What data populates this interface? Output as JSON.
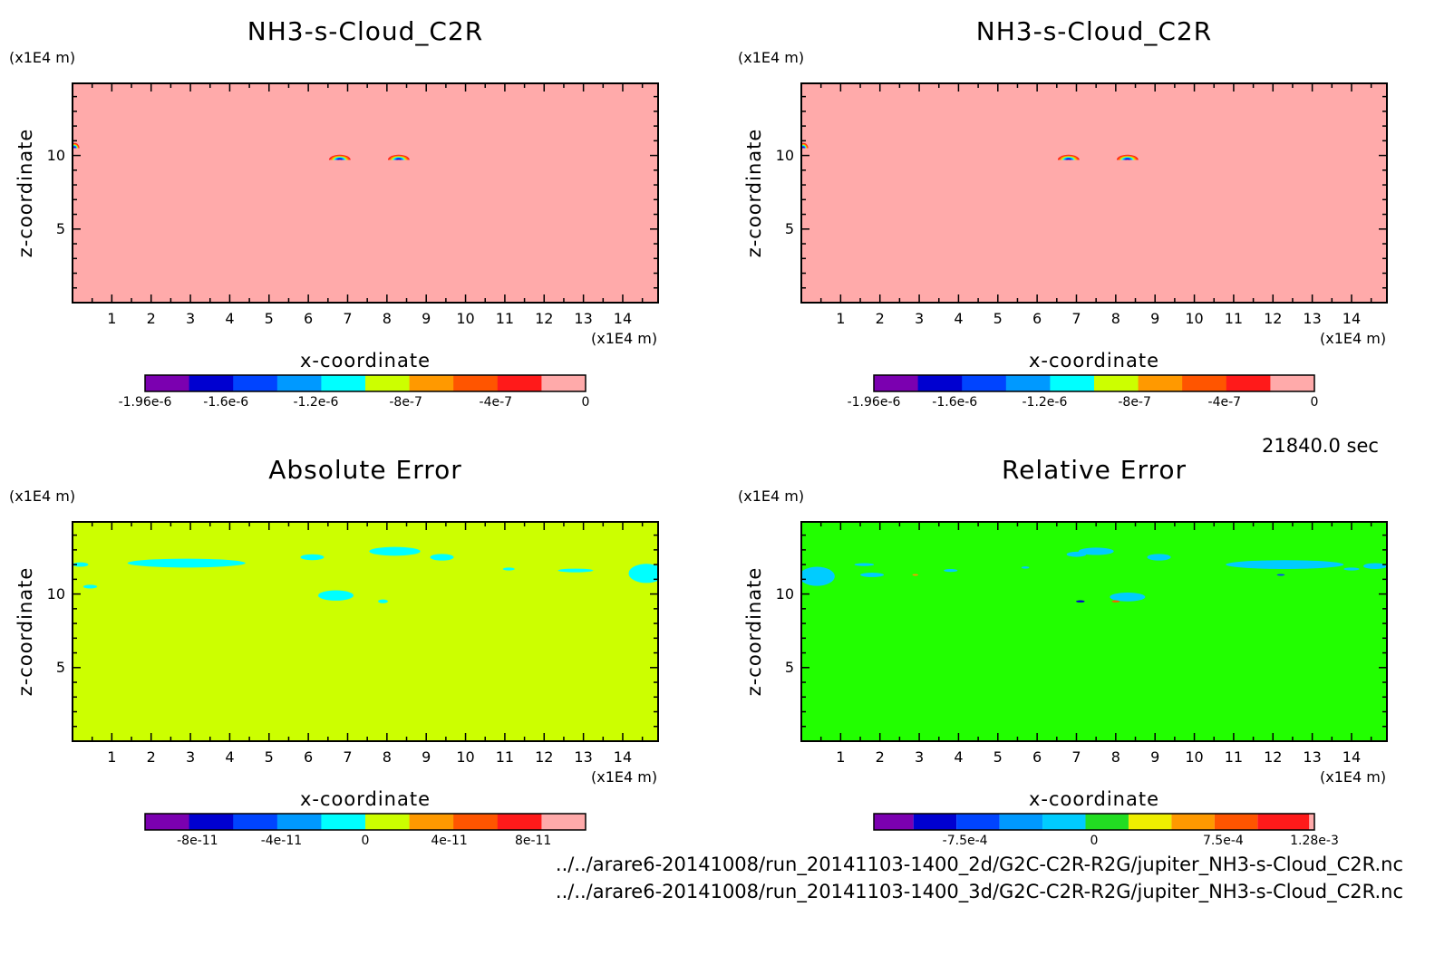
{
  "footer": {
    "time": "21840.0 sec",
    "paths": [
      "../../arare6-20141008/run_20141103-1400_2d/G2C-C2R-R2G/jupiter_NH3-s-Cloud_C2R.nc",
      "../../arare6-20141008/run_20141103-1400_3d/G2C-C2R-R2G/jupiter_NH3-s-Cloud_C2R.nc"
    ]
  },
  "chart_data": [
    {
      "type": "heatmap",
      "title": "NH3-s-Cloud_C2R",
      "xlabel": "x-coordinate",
      "ylabel": "z-coordinate",
      "x_unit": "(x1E4 m)",
      "y_unit": "(x1E4 m)",
      "xlim": [
        0,
        14.9
      ],
      "ylim": [
        0,
        14.9
      ],
      "x_ticks": [
        1,
        2,
        3,
        4,
        5,
        6,
        7,
        8,
        9,
        10,
        11,
        12,
        13,
        14
      ],
      "y_ticks": [
        5,
        10
      ],
      "background": "#ffaaaa",
      "features": [
        {
          "kind": "dome",
          "x": 6.8,
          "z": 9.7,
          "w": 0.55,
          "h": 0.35
        },
        {
          "kind": "dome",
          "x": 8.3,
          "z": 9.7,
          "w": 0.55,
          "h": 0.35
        },
        {
          "kind": "dome",
          "x": 0.05,
          "z": 10.5,
          "w": 0.25,
          "h": 0.35
        }
      ],
      "colorbar": {
        "colors": [
          "#7b00b0",
          "#0000d0",
          "#0044ff",
          "#0099ff",
          "#00ffff",
          "#ccff00",
          "#ff9900",
          "#ff5500",
          "#ff1a1a",
          "#ffaaaa"
        ],
        "tick_labels": [
          "-1.96e-6",
          "-1.6e-6",
          "-1.2e-6",
          "-8e-7",
          "-4e-7",
          "0"
        ],
        "tick_values": [
          -1.96e-06,
          -1.6e-06,
          -1.2e-06,
          -8e-07,
          -4e-07,
          0
        ],
        "range": [
          -1.96e-06,
          0
        ]
      }
    },
    {
      "type": "heatmap",
      "title": "NH3-s-Cloud_C2R",
      "xlabel": "x-coordinate",
      "ylabel": "z-coordinate",
      "x_unit": "(x1E4 m)",
      "y_unit": "(x1E4 m)",
      "xlim": [
        0,
        14.9
      ],
      "ylim": [
        0,
        14.9
      ],
      "x_ticks": [
        1,
        2,
        3,
        4,
        5,
        6,
        7,
        8,
        9,
        10,
        11,
        12,
        13,
        14
      ],
      "y_ticks": [
        5,
        10
      ],
      "background": "#ffaaaa",
      "features": [
        {
          "kind": "dome",
          "x": 6.8,
          "z": 9.7,
          "w": 0.55,
          "h": 0.35
        },
        {
          "kind": "dome",
          "x": 8.3,
          "z": 9.7,
          "w": 0.55,
          "h": 0.35
        },
        {
          "kind": "dome",
          "x": 0.05,
          "z": 10.5,
          "w": 0.25,
          "h": 0.35
        }
      ],
      "colorbar": {
        "colors": [
          "#7b00b0",
          "#0000d0",
          "#0044ff",
          "#0099ff",
          "#00ffff",
          "#ccff00",
          "#ff9900",
          "#ff5500",
          "#ff1a1a",
          "#ffaaaa"
        ],
        "tick_labels": [
          "-1.96e-6",
          "-1.6e-6",
          "-1.2e-6",
          "-8e-7",
          "-4e-7",
          "0"
        ],
        "tick_values": [
          -1.96e-06,
          -1.6e-06,
          -1.2e-06,
          -8e-07,
          -4e-07,
          0
        ],
        "range": [
          -1.96e-06,
          0
        ]
      }
    },
    {
      "type": "heatmap",
      "title": "Absolute Error",
      "xlabel": "x-coordinate",
      "ylabel": "z-coordinate",
      "x_unit": "(x1E4 m)",
      "y_unit": "(x1E4 m)",
      "xlim": [
        0,
        14.9
      ],
      "ylim": [
        0,
        14.9
      ],
      "x_ticks": [
        1,
        2,
        3,
        4,
        5,
        6,
        7,
        8,
        9,
        10,
        11,
        12,
        13,
        14
      ],
      "y_ticks": [
        5,
        10
      ],
      "background": "#ccff00",
      "features": [
        {
          "kind": "blob",
          "x": 0.2,
          "z": 12.0,
          "w": 0.4,
          "h": 0.3,
          "color": "#00ffff"
        },
        {
          "kind": "blob",
          "x": 2.9,
          "z": 12.1,
          "w": 3.0,
          "h": 0.6,
          "color": "#00ffff"
        },
        {
          "kind": "blob",
          "x": 0.45,
          "z": 10.5,
          "w": 0.35,
          "h": 0.25,
          "color": "#00ffff"
        },
        {
          "kind": "blob",
          "x": 6.1,
          "z": 12.5,
          "w": 0.6,
          "h": 0.4,
          "color": "#00ffff"
        },
        {
          "kind": "blob",
          "x": 8.2,
          "z": 12.9,
          "w": 1.3,
          "h": 0.6,
          "color": "#00ffff"
        },
        {
          "kind": "blob",
          "x": 9.4,
          "z": 12.5,
          "w": 0.6,
          "h": 0.45,
          "color": "#00ffff"
        },
        {
          "kind": "blob",
          "x": 6.7,
          "z": 9.9,
          "w": 0.9,
          "h": 0.7,
          "color": "#00ffff"
        },
        {
          "kind": "blob",
          "x": 7.9,
          "z": 9.5,
          "w": 0.25,
          "h": 0.25,
          "color": "#00ffff"
        },
        {
          "kind": "blob",
          "x": 11.1,
          "z": 11.7,
          "w": 0.3,
          "h": 0.2,
          "color": "#00ffff"
        },
        {
          "kind": "blob",
          "x": 12.8,
          "z": 11.6,
          "w": 0.9,
          "h": 0.25,
          "color": "#00ffff"
        },
        {
          "kind": "blob",
          "x": 14.6,
          "z": 11.4,
          "w": 0.9,
          "h": 1.3,
          "color": "#00ffff"
        }
      ],
      "colorbar": {
        "colors": [
          "#7b00b0",
          "#0000d0",
          "#0044ff",
          "#0099ff",
          "#00ffff",
          "#ccff00",
          "#ff9900",
          "#ff5500",
          "#ff1a1a",
          "#ffaaaa"
        ],
        "tick_labels": [
          "-8e-11",
          "-4e-11",
          "0",
          "4e-11",
          "8e-11"
        ],
        "tick_values": [
          -8e-11,
          -4e-11,
          0,
          4e-11,
          8e-11
        ],
        "range": [
          -1.05e-10,
          1.05e-10
        ]
      }
    },
    {
      "type": "heatmap",
      "title": "Relative Error",
      "xlabel": "x-coordinate",
      "ylabel": "z-coordinate",
      "x_unit": "(x1E4 m)",
      "y_unit": "(x1E4 m)",
      "xlim": [
        0,
        14.9
      ],
      "ylim": [
        0,
        14.9
      ],
      "x_ticks": [
        1,
        2,
        3,
        4,
        5,
        6,
        7,
        8,
        9,
        10,
        11,
        12,
        13,
        14
      ],
      "y_ticks": [
        5,
        10
      ],
      "background": "#22ff00",
      "features": [
        {
          "kind": "blob",
          "x": 0.4,
          "z": 11.2,
          "w": 0.9,
          "h": 1.3,
          "color": "#00ccff"
        },
        {
          "kind": "blob",
          "x": 1.8,
          "z": 11.3,
          "w": 0.6,
          "h": 0.3,
          "color": "#00ccff"
        },
        {
          "kind": "blob",
          "x": 1.6,
          "z": 12.0,
          "w": 0.5,
          "h": 0.2,
          "color": "#00ccff"
        },
        {
          "kind": "blob",
          "x": 3.8,
          "z": 11.6,
          "w": 0.35,
          "h": 0.2,
          "color": "#00ccff"
        },
        {
          "kind": "blob",
          "x": 5.7,
          "z": 11.8,
          "w": 0.2,
          "h": 0.15,
          "color": "#00ccff"
        },
        {
          "kind": "blob",
          "x": 7.0,
          "z": 12.7,
          "w": 0.5,
          "h": 0.35,
          "color": "#00ccff"
        },
        {
          "kind": "blob",
          "x": 7.5,
          "z": 12.9,
          "w": 0.9,
          "h": 0.5,
          "color": "#00ccff"
        },
        {
          "kind": "blob",
          "x": 9.1,
          "z": 12.5,
          "w": 0.6,
          "h": 0.45,
          "color": "#00ccff"
        },
        {
          "kind": "blob",
          "x": 8.3,
          "z": 9.8,
          "w": 0.9,
          "h": 0.6,
          "color": "#00ccff"
        },
        {
          "kind": "blob",
          "x": 12.3,
          "z": 12.0,
          "w": 3.0,
          "h": 0.6,
          "color": "#00ccff"
        },
        {
          "kind": "blob",
          "x": 14.6,
          "z": 11.9,
          "w": 0.6,
          "h": 0.4,
          "color": "#00ccff"
        },
        {
          "kind": "blob",
          "x": 14.0,
          "z": 11.7,
          "w": 0.4,
          "h": 0.2,
          "color": "#00ccff"
        },
        {
          "kind": "blob",
          "x": 2.9,
          "z": 11.3,
          "w": 0.15,
          "h": 0.12,
          "color": "#ff9900"
        },
        {
          "kind": "blob",
          "x": 7.1,
          "z": 9.5,
          "w": 0.22,
          "h": 0.15,
          "color": "#0000d0"
        },
        {
          "kind": "blob",
          "x": 8.0,
          "z": 9.5,
          "w": 0.2,
          "h": 0.13,
          "color": "#ff5500"
        },
        {
          "kind": "blob",
          "x": 12.2,
          "z": 11.3,
          "w": 0.2,
          "h": 0.12,
          "color": "#0044ff"
        }
      ],
      "colorbar": {
        "colors": [
          "#7b00b0",
          "#0000d0",
          "#0044ff",
          "#0099ff",
          "#00ccff",
          "#22dd22",
          "#eeee00",
          "#ff9900",
          "#ff5500",
          "#ff1a1a",
          "#ffaaaa"
        ],
        "bounds": [
          -0.00128,
          -0.00105,
          -0.0008,
          -0.00055,
          -0.0003,
          -5e-05,
          0.0002,
          0.00045,
          0.0007,
          0.00095,
          0.00125,
          0.00128
        ],
        "tick_labels": [
          "-7.5e-4",
          "0",
          "7.5e-4",
          "1.28e-3"
        ],
        "tick_values": [
          -0.00075,
          0,
          0.00075,
          0.00128
        ],
        "range": [
          -0.00128,
          0.00128
        ]
      }
    }
  ]
}
